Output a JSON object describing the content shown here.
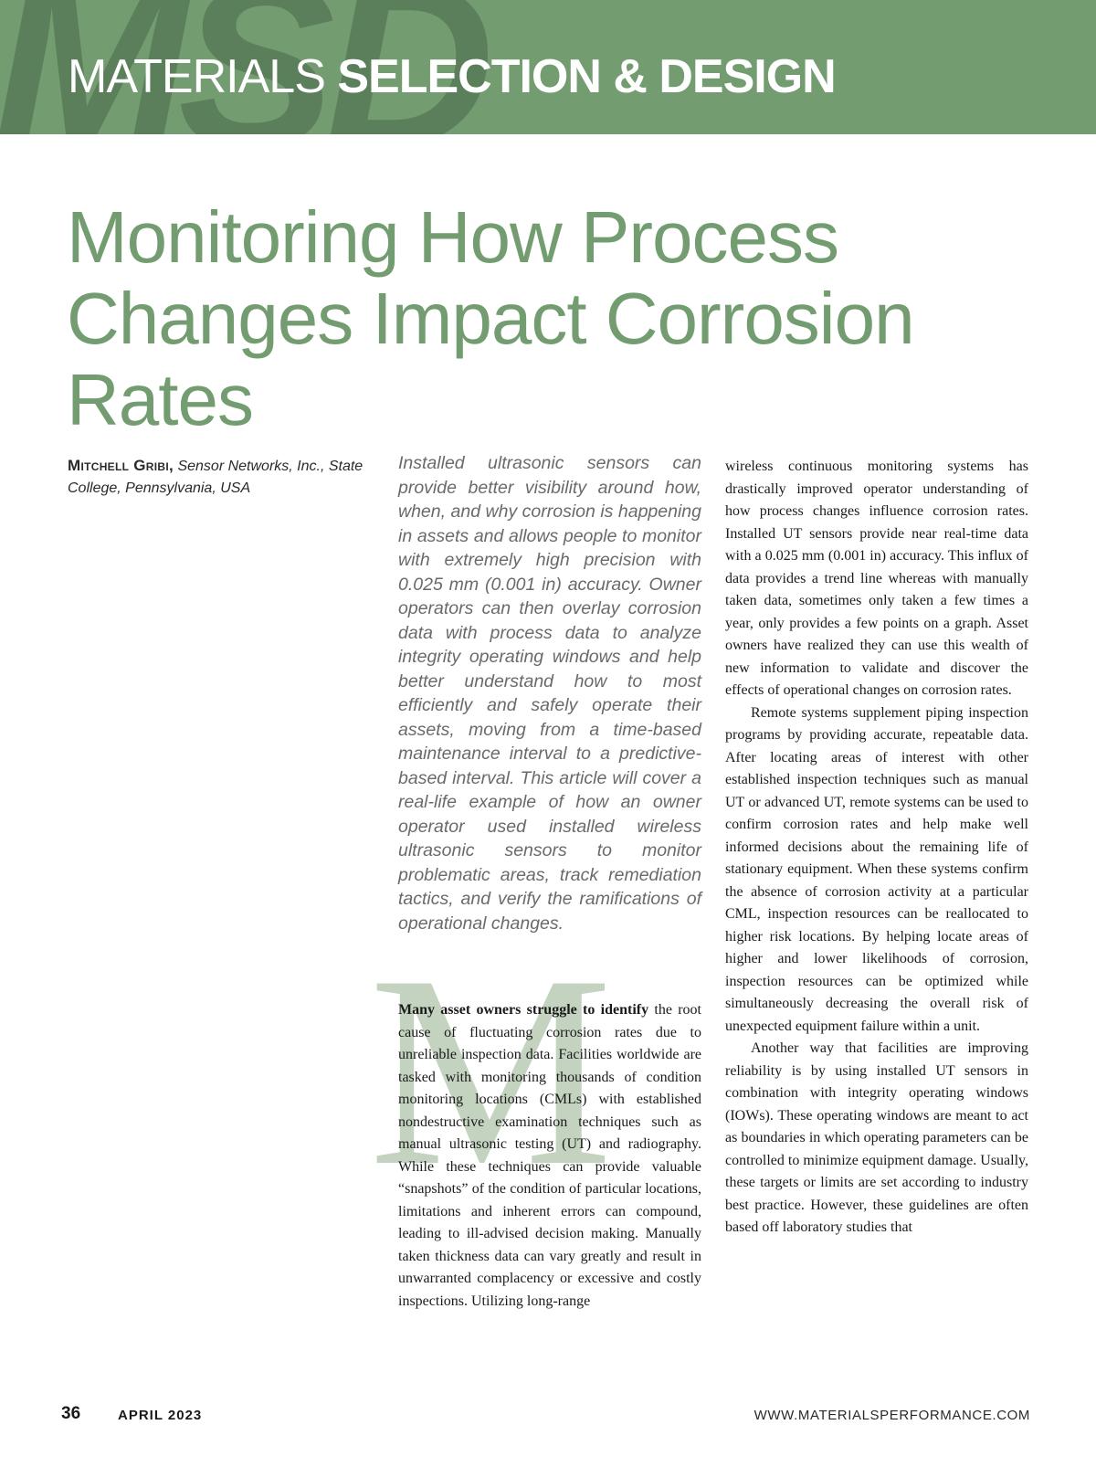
{
  "header": {
    "watermark": "MSD",
    "section_light": "MATERIALS ",
    "section_bold": "SELECTION & DESIGN"
  },
  "article": {
    "title": "Monitoring How Process Changes Impact Corrosion Rates",
    "author": "Mitchell Gribi,",
    "affiliation": " Sensor Networks, Inc., State College, Pennsylvania, USA",
    "abstract": "Installed ultrasonic sensors can provide better visibility around how, when, and why corrosion is happening in assets and allows people to monitor with extremely high precision with 0.025 mm (0.001 in) accuracy. Owner operators can then overlay corrosion data with process data to analyze integrity operating windows and help better understand how to most efficiently and safely operate their assets, moving from a time-based maintenance interval to a predictive-based interval. This article will cover a real-life example of how an owner operator used installed wireless ultrasonic sensors to monitor problematic areas, track remediation tactics, and verify the ramifications of operational changes.",
    "drop_cap": "M",
    "body": {
      "lead_in": "Many asset owners struggle to identify",
      "p1_rest": " the root cause of fluctuating corrosion rates due to unreliable inspection data. Facilities worldwide are tasked with monitoring thousands of condition monitoring locations (CMLs) with established nondestructive examination techniques such as manual ultrasonic testing (UT) and radiography. While these techniques can provide valuable “snapshots” of the condition of particular locations, limitations and inherent errors can compound, leading to ill-advised decision making. Manually taken thickness data can vary greatly and result in unwarranted complacency or excessive and costly inspections. Utilizing long-range",
      "p1_cont": "wireless continuous monitoring systems has drastically improved operator understanding of how process changes influence corrosion rates. Installed UT sensors provide near real-time data with a 0.025 mm (0.001 in) accuracy. This influx of data provides a trend line whereas with manually taken data, sometimes only taken a few times a year, only provides a few points on a graph. Asset owners have realized they can use this wealth of new information to validate and discover the effects of operational changes on corrosion rates.",
      "p2": "Remote systems supplement piping inspection programs by providing accurate, repeatable data. After locating areas of interest with other established inspection techniques such as manual UT or advanced UT, remote systems can be used to confirm corrosion rates and help make well informed decisions about the remaining life of stationary equipment. When these systems confirm the absence of corrosion activity at a particular CML, inspection resources can be reallocated to higher risk locations. By helping locate areas of higher and lower likelihoods of corrosion, inspection resources can be optimized while simultaneously decreasing the overall risk of unexpected equipment failure within a unit.",
      "p3": "Another way that facilities are improving reliability is by using installed UT sensors in combination with integrity operating windows (IOWs). These operating windows are meant to act as boundaries in which operating parameters can be controlled to minimize equipment damage. Usually, these targets or limits are set according to industry best practice. However, these guidelines are often based off laboratory studies that"
    }
  },
  "footer": {
    "page_number": "36",
    "issue_date": "APRIL 2023",
    "website": "WWW.MATERIALSPERFORMANCE.COM"
  },
  "colors": {
    "brand_green": "#739d70",
    "watermark_green": "#5b7f5b",
    "drop_cap_green": "#c4d3bf"
  }
}
